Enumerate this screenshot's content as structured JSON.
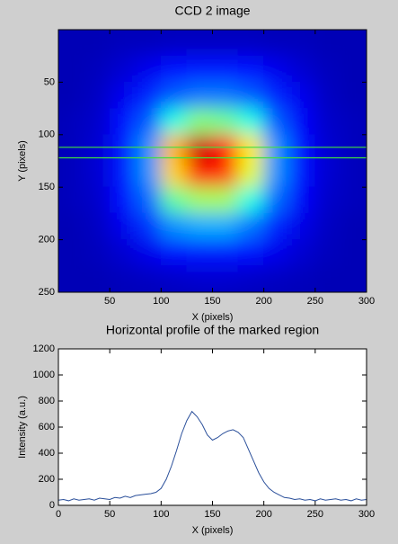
{
  "chart_data": [
    {
      "type": "heatmap",
      "title": "CCD 2 image",
      "xlabel": "X (pixels)",
      "ylabel": "Y (pixels)",
      "xlim": [
        0,
        300
      ],
      "ylim": [
        0,
        250
      ],
      "y_reversed": true,
      "xticks": [
        50,
        100,
        150,
        200,
        250,
        300
      ],
      "yticks": [
        50,
        100,
        150,
        200,
        250
      ],
      "colormap": "jet",
      "clim": [
        0,
        750
      ],
      "x": [
        12.5,
        37.5,
        62.5,
        87.5,
        112.5,
        137.5,
        162.5,
        187.5,
        212.5,
        237.5,
        262.5,
        287.5
      ],
      "y": [
        12.5,
        37.5,
        62.5,
        87.5,
        112.5,
        137.5,
        162.5,
        187.5,
        212.5,
        237.5
      ],
      "values": [
        [
          40,
          40,
          45,
          45,
          50,
          50,
          50,
          50,
          45,
          45,
          40,
          40
        ],
        [
          40,
          45,
          60,
          80,
          100,
          110,
          110,
          100,
          80,
          60,
          45,
          40
        ],
        [
          40,
          50,
          80,
          120,
          160,
          180,
          180,
          160,
          120,
          80,
          50,
          40
        ],
        [
          45,
          55,
          100,
          160,
          300,
          380,
          360,
          300,
          160,
          90,
          55,
          45
        ],
        [
          45,
          60,
          110,
          200,
          520,
          700,
          650,
          480,
          200,
          100,
          60,
          45
        ],
        [
          45,
          60,
          110,
          200,
          500,
          650,
          620,
          450,
          200,
          100,
          60,
          45
        ],
        [
          45,
          55,
          100,
          170,
          350,
          400,
          400,
          300,
          170,
          90,
          55,
          45
        ],
        [
          40,
          50,
          80,
          130,
          200,
          220,
          220,
          180,
          120,
          75,
          50,
          40
        ],
        [
          40,
          45,
          60,
          80,
          100,
          110,
          110,
          100,
          80,
          60,
          45,
          40
        ],
        [
          40,
          40,
          45,
          50,
          55,
          60,
          60,
          55,
          50,
          45,
          40,
          40
        ]
      ],
      "marked_rows": [
        112,
        122
      ],
      "marked_color": "#40e040"
    },
    {
      "type": "line",
      "title": "Horizontal profile of the marked region",
      "xlabel": "X (pixels)",
      "ylabel": "Intensity (a.u.)",
      "xlim": [
        0,
        300
      ],
      "ylim": [
        0,
        1200
      ],
      "xticks": [
        0,
        50,
        100,
        150,
        200,
        250,
        300
      ],
      "yticks": [
        0,
        200,
        400,
        600,
        800,
        1000,
        1200
      ],
      "x": [
        0,
        5,
        10,
        15,
        20,
        25,
        30,
        35,
        40,
        45,
        50,
        55,
        60,
        65,
        70,
        75,
        80,
        85,
        90,
        95,
        100,
        105,
        110,
        115,
        120,
        125,
        130,
        135,
        140,
        145,
        150,
        155,
        160,
        165,
        170,
        175,
        180,
        185,
        190,
        195,
        200,
        205,
        210,
        215,
        220,
        225,
        230,
        235,
        240,
        245,
        250,
        255,
        260,
        265,
        270,
        275,
        280,
        285,
        290,
        295,
        300
      ],
      "values": [
        40,
        45,
        35,
        50,
        40,
        45,
        50,
        40,
        55,
        50,
        45,
        60,
        55,
        70,
        60,
        75,
        80,
        85,
        90,
        100,
        130,
        200,
        300,
        420,
        550,
        650,
        720,
        680,
        620,
        540,
        500,
        520,
        550,
        570,
        580,
        560,
        520,
        430,
        340,
        250,
        180,
        130,
        100,
        80,
        60,
        55,
        45,
        50,
        40,
        45,
        35,
        50,
        40,
        45,
        50,
        40,
        45,
        35,
        50,
        40,
        45
      ],
      "color": "#2a4f9a"
    }
  ]
}
